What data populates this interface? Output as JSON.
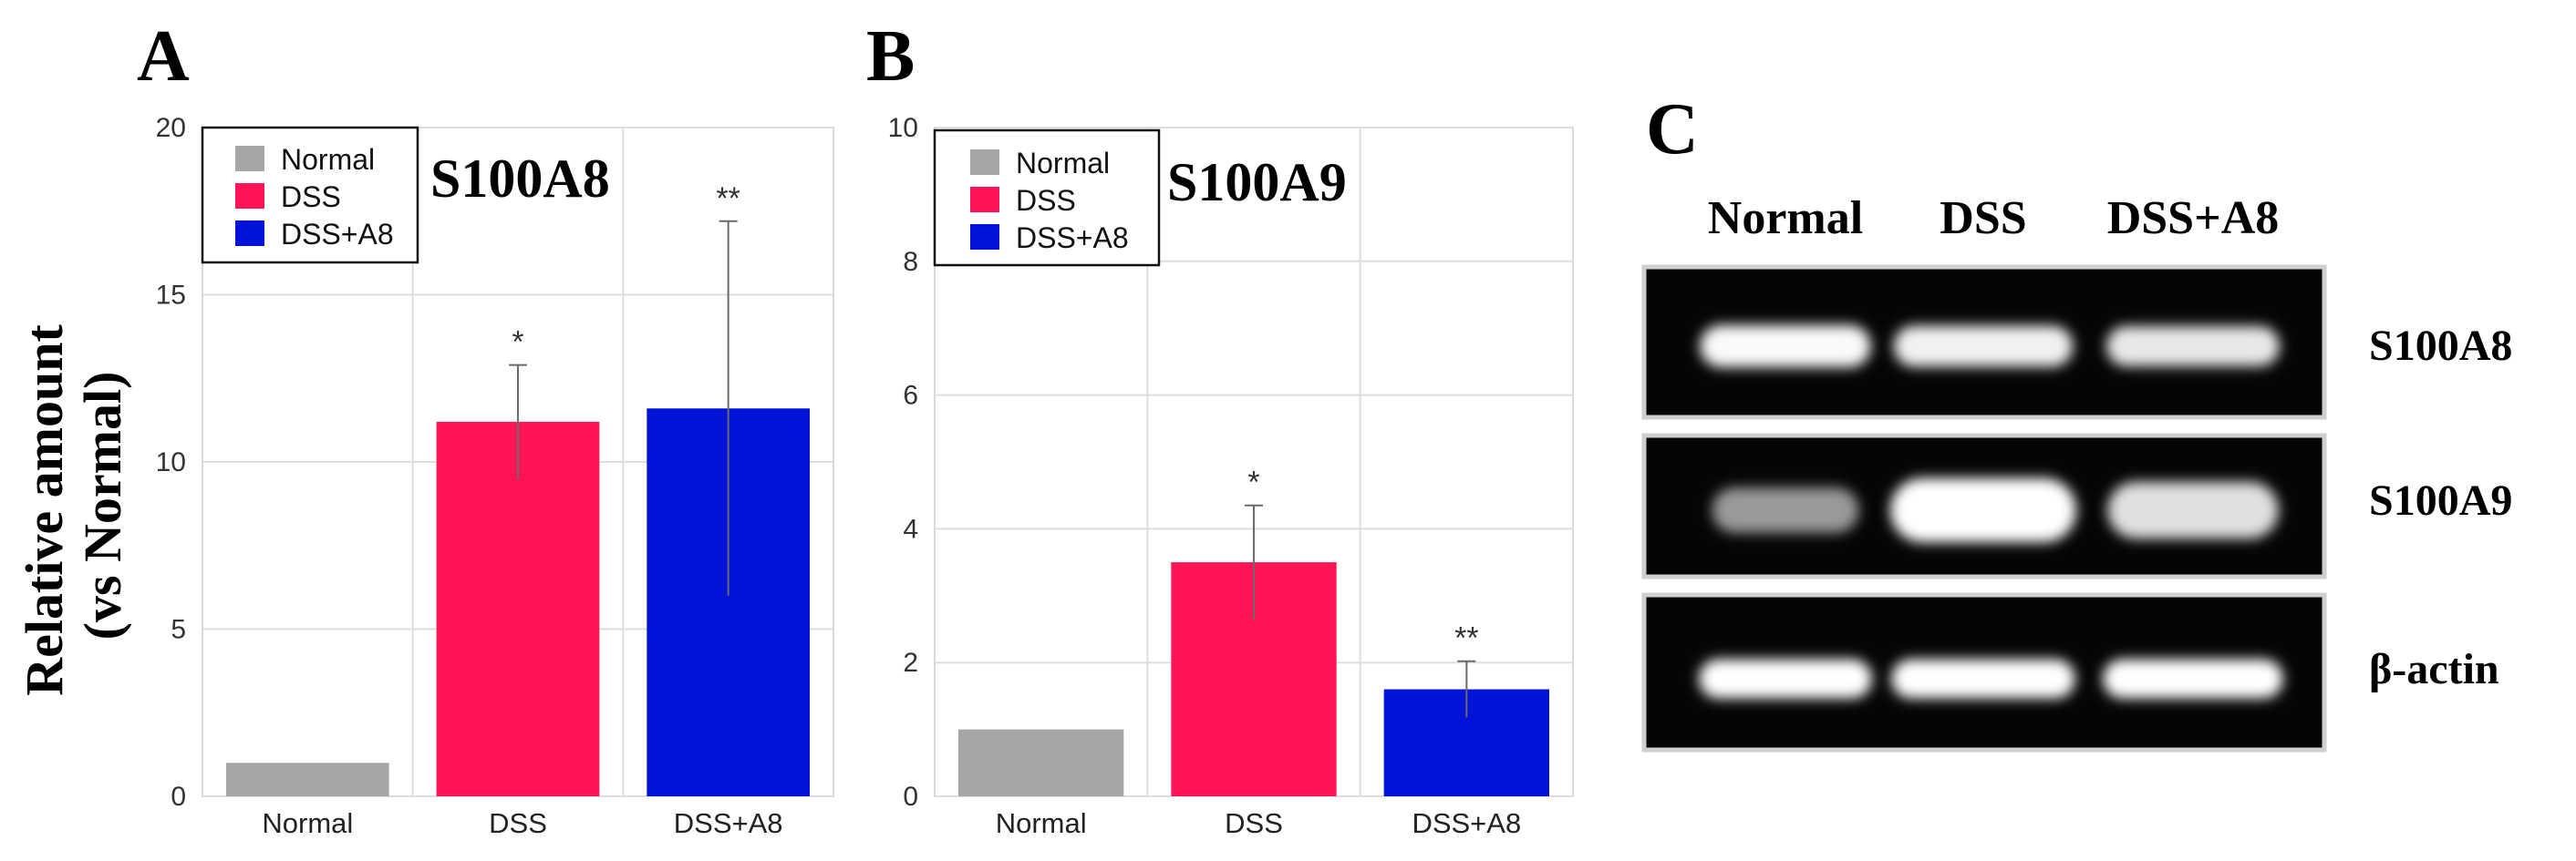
{
  "chart_data": [
    {
      "panel": "A",
      "type": "bar",
      "title": "S100A8",
      "ylabel_line1": "Relative amount",
      "ylabel_line2": "(vs Normal)",
      "xlabel": "",
      "ylim": [
        0,
        20
      ],
      "yticks": [
        0,
        5,
        10,
        15,
        20
      ],
      "categories": [
        "Normal",
        "DSS",
        "DSS+A8"
      ],
      "values": [
        1.0,
        11.2,
        11.6
      ],
      "errors": [
        0,
        1.7,
        5.6
      ],
      "significance": [
        "",
        "*",
        "**"
      ],
      "colors": [
        "#a6a6a6",
        "#ff1456",
        "#0014d8"
      ],
      "legend": [
        "Normal",
        "DSS",
        "DSS+A8"
      ],
      "grid": true
    },
    {
      "panel": "B",
      "type": "bar",
      "title": "S100A9",
      "xlabel": "",
      "ylim": [
        0,
        10
      ],
      "yticks": [
        0,
        2,
        4,
        6,
        8,
        10
      ],
      "categories": [
        "Normal",
        "DSS",
        "DSS+A8"
      ],
      "values": [
        1.0,
        3.5,
        1.6
      ],
      "errors": [
        0,
        0.85,
        0.42
      ],
      "significance": [
        "",
        "*",
        "**"
      ],
      "colors": [
        "#a6a6a6",
        "#ff1456",
        "#0014d8"
      ],
      "legend": [
        "Normal",
        "DSS",
        "DSS+A8"
      ],
      "grid": true
    }
  ],
  "gel": {
    "panel": "C",
    "columns": [
      "Normal",
      "DSS",
      "DSS+A8"
    ],
    "rows": [
      {
        "label": "S100A8",
        "intensity": [
          0.9,
          0.85,
          0.8
        ]
      },
      {
        "label": "S100A9",
        "intensity": [
          0.35,
          1.0,
          0.75
        ]
      },
      {
        "label": "β-actin",
        "intensity": [
          0.95,
          0.95,
          0.95
        ]
      }
    ]
  }
}
